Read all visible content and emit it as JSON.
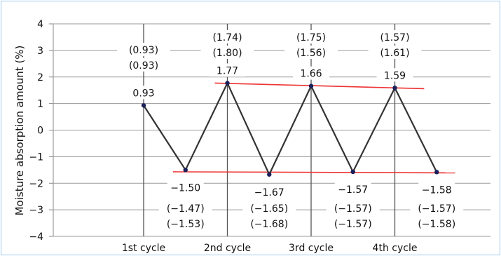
{
  "chart_data": {
    "type": "line",
    "ylabel": "Moisture absorption amount (%)",
    "ylim": [
      -4,
      4
    ],
    "yticks": [
      4,
      3,
      2,
      1,
      0,
      -1,
      -2,
      -3,
      -4
    ],
    "categories": [
      "1st cycle",
      "2nd cycle",
      "3rd cycle",
      "4th cycle"
    ],
    "grid": "horizontal",
    "series": [
      {
        "color": "#333333",
        "points": [
          {
            "x": 1.0,
            "y": 0.93,
            "label": "0.93"
          },
          {
            "x": 1.5,
            "y": -1.5,
            "label": "−1.50"
          },
          {
            "x": 2.0,
            "y": 1.77,
            "label": "1.77"
          },
          {
            "x": 2.5,
            "y": -1.67,
            "label": "−1.67"
          },
          {
            "x": 3.0,
            "y": 1.66,
            "label": "1.66"
          },
          {
            "x": 3.5,
            "y": -1.57,
            "label": "−1.57"
          },
          {
            "x": 4.0,
            "y": 1.59,
            "label": "1.59"
          },
          {
            "x": 4.5,
            "y": -1.58,
            "label": "−1.58"
          }
        ]
      }
    ],
    "bracket_annotations": [
      {
        "x": 1.0,
        "lines": [
          "(0.93)",
          "(0.93)"
        ]
      },
      {
        "x": 2.0,
        "lines": [
          "(1.74)",
          "(1.80)"
        ]
      },
      {
        "x": 3.0,
        "lines": [
          "(1.75)",
          "(1.56)"
        ]
      },
      {
        "x": 4.0,
        "lines": [
          "(1.57)",
          "(1.61)"
        ]
      },
      {
        "x": 1.5,
        "lines": [
          "(−1.47)",
          "(−1.53)"
        ]
      },
      {
        "x": 2.5,
        "lines": [
          "(−1.65)",
          "(−1.68)"
        ]
      },
      {
        "x": 3.5,
        "lines": [
          "(−1.57)",
          "(−1.57)"
        ]
      },
      {
        "x": 4.5,
        "lines": [
          "(−1.57)",
          "(−1.58)"
        ]
      }
    ],
    "trend_lines": [
      {
        "color": "#ee3333",
        "from": {
          "x": 1.85,
          "y": 1.77
        },
        "to": {
          "x": 4.35,
          "y": 1.56
        }
      },
      {
        "color": "#ee3333",
        "from": {
          "x": 1.35,
          "y": -1.57
        },
        "to": {
          "x": 4.72,
          "y": -1.61
        }
      }
    ]
  }
}
